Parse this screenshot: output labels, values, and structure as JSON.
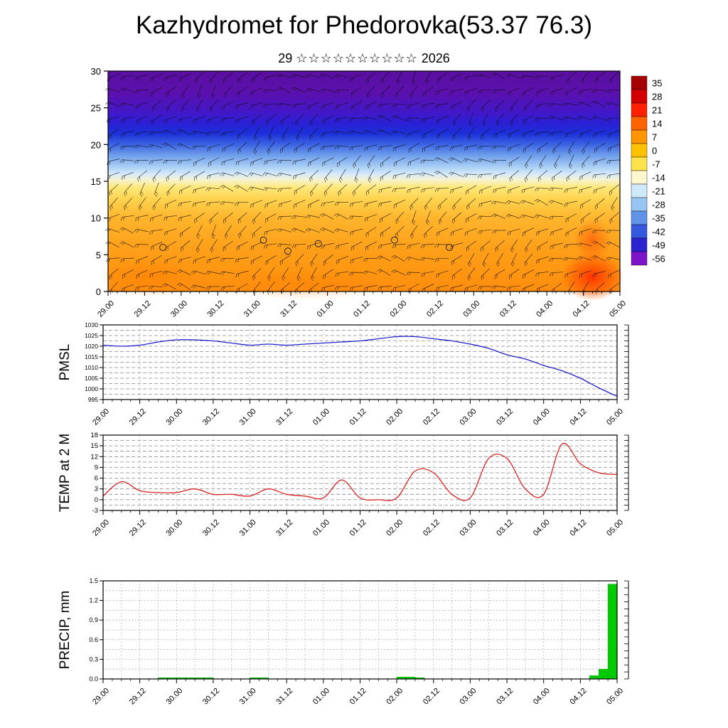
{
  "title": "Kazhydromet for Phedorovka(53.37 76.3)",
  "subtitle": {
    "day": "29",
    "stars": "☆☆☆☆☆☆☆☆☆☆",
    "year": "2026"
  },
  "time_axis": {
    "labels": [
      "29.00",
      "29.12",
      "30.00",
      "30.12",
      "31.00",
      "31.12",
      "01.00",
      "01.12",
      "02.00",
      "02.12",
      "03.00",
      "03.12",
      "04.00",
      "04.12",
      "05.00"
    ],
    "hours_per_label": 12,
    "minor_tick_hours": 3,
    "total_hours": 168
  },
  "colorbar": {
    "ticks": [
      "35",
      "28",
      "21",
      "14",
      "7",
      "0",
      "-7",
      "-14",
      "-21",
      "-28",
      "-35",
      "-42",
      "-49",
      "-56"
    ],
    "colors": [
      "#a50000",
      "#d40000",
      "#ff2000",
      "#ff6400",
      "#ff9600",
      "#ffc100",
      "#ffe34d",
      "#fdf6cf",
      "#cfe9fa",
      "#96c6f2",
      "#5f93e8",
      "#3558de",
      "#2a23cf",
      "#7c15c9"
    ]
  },
  "chart_data": [
    {
      "id": "cross_section",
      "type": "heatmap",
      "title": "",
      "ylabel": "",
      "y_levels": [
        0,
        5,
        10,
        15,
        20,
        25,
        30
      ],
      "overlay": "wind-barbs",
      "rows": [
        {
          "level": 30,
          "temps": [
            -56,
            -56,
            -56,
            -56,
            -56,
            -56,
            -56,
            -56,
            -56,
            -56,
            -56,
            -56,
            -56,
            -56,
            -56
          ]
        },
        {
          "level": 25,
          "temps": [
            -52,
            -52,
            -50,
            -50,
            -50,
            -50,
            -48,
            -50,
            -52,
            -52,
            -52,
            -52,
            -52,
            -54,
            -54
          ]
        },
        {
          "level": 20,
          "temps": [
            -30,
            -30,
            -29,
            -28,
            -28,
            -28,
            -25,
            -24,
            -26,
            -28,
            -28,
            -28,
            -28,
            -30,
            -30
          ]
        },
        {
          "level": 15,
          "temps": [
            -10,
            -10,
            -11,
            -11,
            -10,
            -10,
            -12,
            -13,
            -13,
            -12,
            -11,
            -11,
            -10,
            -8,
            -10
          ]
        },
        {
          "level": 10,
          "temps": [
            0,
            0,
            0,
            1,
            1,
            0,
            0,
            0,
            1,
            1,
            1,
            1,
            2,
            4,
            2
          ]
        },
        {
          "level": 5,
          "temps": [
            4,
            4,
            4,
            5,
            5,
            4,
            4,
            4,
            5,
            5,
            5,
            5,
            6,
            10,
            6
          ]
        },
        {
          "level": 0,
          "temps": [
            6,
            6,
            6,
            6,
            6,
            6,
            6,
            6,
            6,
            6,
            6,
            7,
            7,
            14,
            8
          ]
        }
      ],
      "calm_markers": [
        {
          "t": 18,
          "level": 6
        },
        {
          "t": 51,
          "level": 7
        },
        {
          "t": 59,
          "level": 5.5
        },
        {
          "t": 69,
          "level": 6.5
        },
        {
          "t": 94,
          "level": 7
        },
        {
          "t": 112,
          "level": 6
        }
      ]
    },
    {
      "id": "pmsl",
      "type": "line",
      "ylabel": "PMSL",
      "color": "#2222cc",
      "ylim": [
        995,
        1030
      ],
      "yticks": [
        995,
        1000,
        1005,
        1010,
        1015,
        1020,
        1025,
        1030
      ],
      "x_start_hours": 0,
      "x_step_hours": 6,
      "values": [
        1020.5,
        1020,
        1020.5,
        1022,
        1023,
        1023,
        1022.5,
        1021.5,
        1020.5,
        1021,
        1020.5,
        1021,
        1021.5,
        1022,
        1022.5,
        1023.5,
        1024.5,
        1024.5,
        1023.5,
        1022.5,
        1021,
        1019,
        1016,
        1014,
        1011,
        1008.5,
        1005,
        1000.5,
        996.5
      ]
    },
    {
      "id": "temp2m",
      "type": "line",
      "ylabel": "TEMP at 2 M",
      "color": "#dd2222",
      "ylim": [
        -3,
        18
      ],
      "yticks": [
        -3,
        0,
        3,
        6,
        9,
        12,
        15,
        18
      ],
      "x_start_hours": 0,
      "x_step_hours": 6,
      "values": [
        1,
        5,
        2.5,
        2,
        2,
        3,
        1.5,
        1.5,
        1,
        3,
        1.5,
        1,
        0.5,
        5.5,
        0.5,
        0,
        0.5,
        8,
        7.5,
        1.5,
        0.5,
        11.5,
        11.5,
        3,
        1.5,
        15.5,
        10,
        7.5,
        7
      ]
    },
    {
      "id": "precip",
      "type": "bar",
      "ylabel": "PRECIP, mm",
      "color": "#00cc00",
      "ylim": [
        0,
        1.5
      ],
      "yticks": [
        "0.0",
        "0.3",
        "0.6",
        "0.9",
        "1.2",
        "1.5"
      ],
      "bar_width_hours": 3,
      "bars": [
        {
          "t": 18,
          "v": 0.02
        },
        {
          "t": 21,
          "v": 0.02
        },
        {
          "t": 24,
          "v": 0.02
        },
        {
          "t": 27,
          "v": 0.02
        },
        {
          "t": 30,
          "v": 0.02
        },
        {
          "t": 33,
          "v": 0.02
        },
        {
          "t": 48,
          "v": 0.02
        },
        {
          "t": 51,
          "v": 0.02
        },
        {
          "t": 96,
          "v": 0.03
        },
        {
          "t": 99,
          "v": 0.03
        },
        {
          "t": 102,
          "v": 0.02
        },
        {
          "t": 159,
          "v": 0.05
        },
        {
          "t": 162,
          "v": 0.15
        },
        {
          "t": 165,
          "v": 1.45
        }
      ]
    }
  ]
}
